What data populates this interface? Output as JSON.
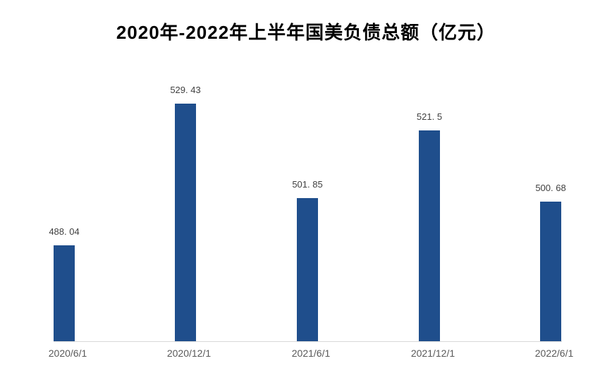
{
  "chart_data": {
    "type": "bar",
    "title": "2020年-2022年上半年国美负债总额（亿元）",
    "categories": [
      "2020/6/1",
      "2020/12/1",
      "2021/6/1",
      "2021/12/1",
      "2022/6/1"
    ],
    "values": [
      488.04,
      529.43,
      501.85,
      521.5,
      500.68
    ],
    "value_labels": [
      "488. 04",
      "529. 43",
      "501. 85",
      "521. 5",
      "500. 68"
    ],
    "series_name": "负债总额",
    "xlabel": "",
    "ylabel": "",
    "ylim": [
      460,
      540
    ],
    "grid": false,
    "legend": "none",
    "y_axis_visible": false,
    "bar_color": "#1F4E8C",
    "axis_line_color": "#D9D9D9",
    "value_label_color": "#404040",
    "tick_label_color": "#595959",
    "title_color": "#000000",
    "background": "#FFFFFF"
  }
}
